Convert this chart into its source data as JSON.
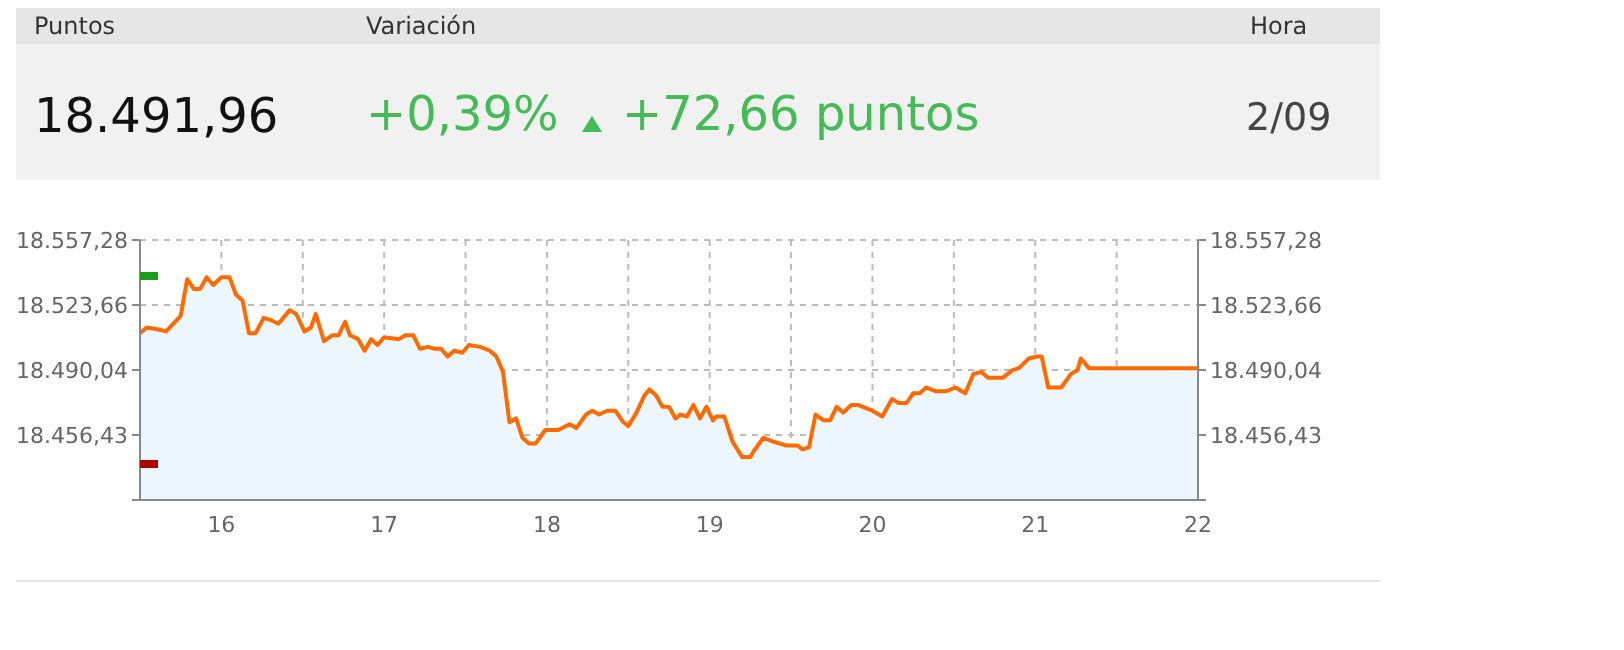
{
  "chart_data": [
    {
      "type": "other",
      "annotations": [
        "Puntos",
        "Variación",
        "Hora",
        "18.491,96",
        "+0,39%",
        "+72,66 puntos",
        "2/09"
      ]
    },
    {
      "type": "area",
      "grid": true,
      "line_style": "solid",
      "marker": "none",
      "tick_labels": "y",
      "xlim": [
        15.5,
        22
      ],
      "xticks": [
        {
          "value": 16,
          "label": "16"
        },
        {
          "value": 16.5,
          "label": null
        },
        {
          "value": 17,
          "label": "17"
        },
        {
          "value": 17.5,
          "label": null
        },
        {
          "value": 18,
          "label": "18"
        },
        {
          "value": 18.5,
          "label": null
        },
        {
          "value": 19,
          "label": "19"
        },
        {
          "value": 19.5,
          "label": null
        },
        {
          "value": 20,
          "label": "20"
        },
        {
          "value": 20.5,
          "label": null
        },
        {
          "value": 21,
          "label": "21"
        },
        {
          "value": 21.5,
          "label": null
        },
        {
          "value": 22,
          "label": "22"
        }
      ],
      "ylim": [
        18422.81,
        18557.28
      ],
      "yticks": [
        {
          "value": 18422.81,
          "label": null
        },
        {
          "value": 18456.43,
          "label": "18.456,43"
        },
        {
          "value": 18490.04,
          "label": "18.490,04"
        },
        {
          "value": 18523.66,
          "label": "18.523,66"
        },
        {
          "value": 18557.28,
          "label": "18.557,28"
        }
      ],
      "y2lim": [
        18422.81,
        18557.28
      ],
      "y2ticks": [
        {
          "value": 18422.81,
          "label": null
        },
        {
          "value": 18456.43,
          "label": "18.456,43"
        },
        {
          "value": 18490.04,
          "label": "18.490,04"
        },
        {
          "value": 18523.66,
          "label": "18.523,66"
        },
        {
          "value": 18557.28,
          "label": "18.557,28"
        }
      ],
      "series": [
        {
          "color": "#ff6a00",
          "x": [
            15.5,
            15.54,
            15.615,
            15.66,
            15.75,
            15.79,
            15.83,
            15.87,
            15.91,
            15.95,
            16.0,
            16.05,
            16.09,
            16.13,
            16.17,
            16.21,
            16.26,
            16.3,
            16.35,
            16.42,
            16.46,
            16.51,
            16.55,
            16.58,
            16.63,
            16.68,
            16.72,
            16.76,
            16.79,
            16.84,
            16.88,
            16.92,
            16.96,
            17.0,
            17.09,
            17.13,
            17.18,
            17.22,
            17.27,
            17.31,
            17.35,
            17.39,
            17.43,
            17.48,
            17.52,
            17.59,
            17.65,
            17.69,
            17.73,
            17.77,
            17.81,
            17.85,
            17.89,
            17.93,
            17.99,
            18.07,
            18.14,
            18.18,
            18.24,
            18.28,
            18.32,
            18.37,
            18.42,
            18.47,
            18.5,
            18.55,
            18.6,
            18.63,
            18.67,
            18.71,
            18.75,
            18.79,
            18.82,
            18.86,
            18.9,
            18.94,
            18.98,
            19.02,
            19.04,
            19.09,
            19.14,
            19.2,
            19.25,
            19.27,
            19.33,
            19.39,
            19.47,
            19.54,
            19.57,
            19.61,
            19.65,
            19.7,
            19.74,
            19.78,
            19.82,
            19.87,
            19.91,
            20.0,
            20.06,
            20.12,
            20.16,
            20.21,
            20.25,
            20.29,
            20.33,
            20.39,
            20.45,
            20.51,
            20.57,
            20.62,
            20.67,
            20.71,
            20.8,
            20.86,
            20.9,
            20.96,
            21.01,
            21.04,
            21.08,
            21.16,
            21.22,
            21.26,
            21.28,
            21.33,
            22.0
          ],
          "values": [
            18509,
            18512,
            18511,
            18510,
            18518,
            18537,
            18532,
            18532,
            18538,
            18534,
            18538,
            18538,
            18529,
            18526,
            18509,
            18509,
            18517,
            18516,
            18514,
            18521,
            18519,
            18510,
            18512,
            18519,
            18505,
            18508,
            18508,
            18515,
            18508,
            18506,
            18500,
            18506,
            18503,
            18507,
            18506,
            18508,
            18508,
            18501,
            18502,
            18501,
            18501,
            18497,
            18500,
            18499,
            18503,
            18502,
            18500,
            18497,
            18489,
            18463,
            18465,
            18455,
            18452,
            18452,
            18459,
            18459,
            18462,
            18460,
            18467,
            18469,
            18467,
            18469,
            18469,
            18463,
            18461,
            18468,
            18477,
            18480,
            18477,
            18471,
            18471,
            18465,
            18467,
            18466,
            18472,
            18465,
            18471,
            18464,
            18466,
            18466,
            18453,
            18445,
            18445,
            18448,
            18455,
            18453,
            18451,
            18451,
            18449,
            18450,
            18467,
            18464,
            18464,
            18471,
            18468,
            18472,
            18472,
            18469,
            18466,
            18475,
            18473,
            18473,
            18478,
            18478,
            18481,
            18479,
            18479,
            18481,
            18478,
            18488,
            18489,
            18486,
            18486,
            18490,
            18491,
            18496,
            18497,
            18497,
            18481,
            18481,
            18488,
            18490,
            18496,
            18491,
            18491
          ]
        }
      ]
    }
  ]
}
